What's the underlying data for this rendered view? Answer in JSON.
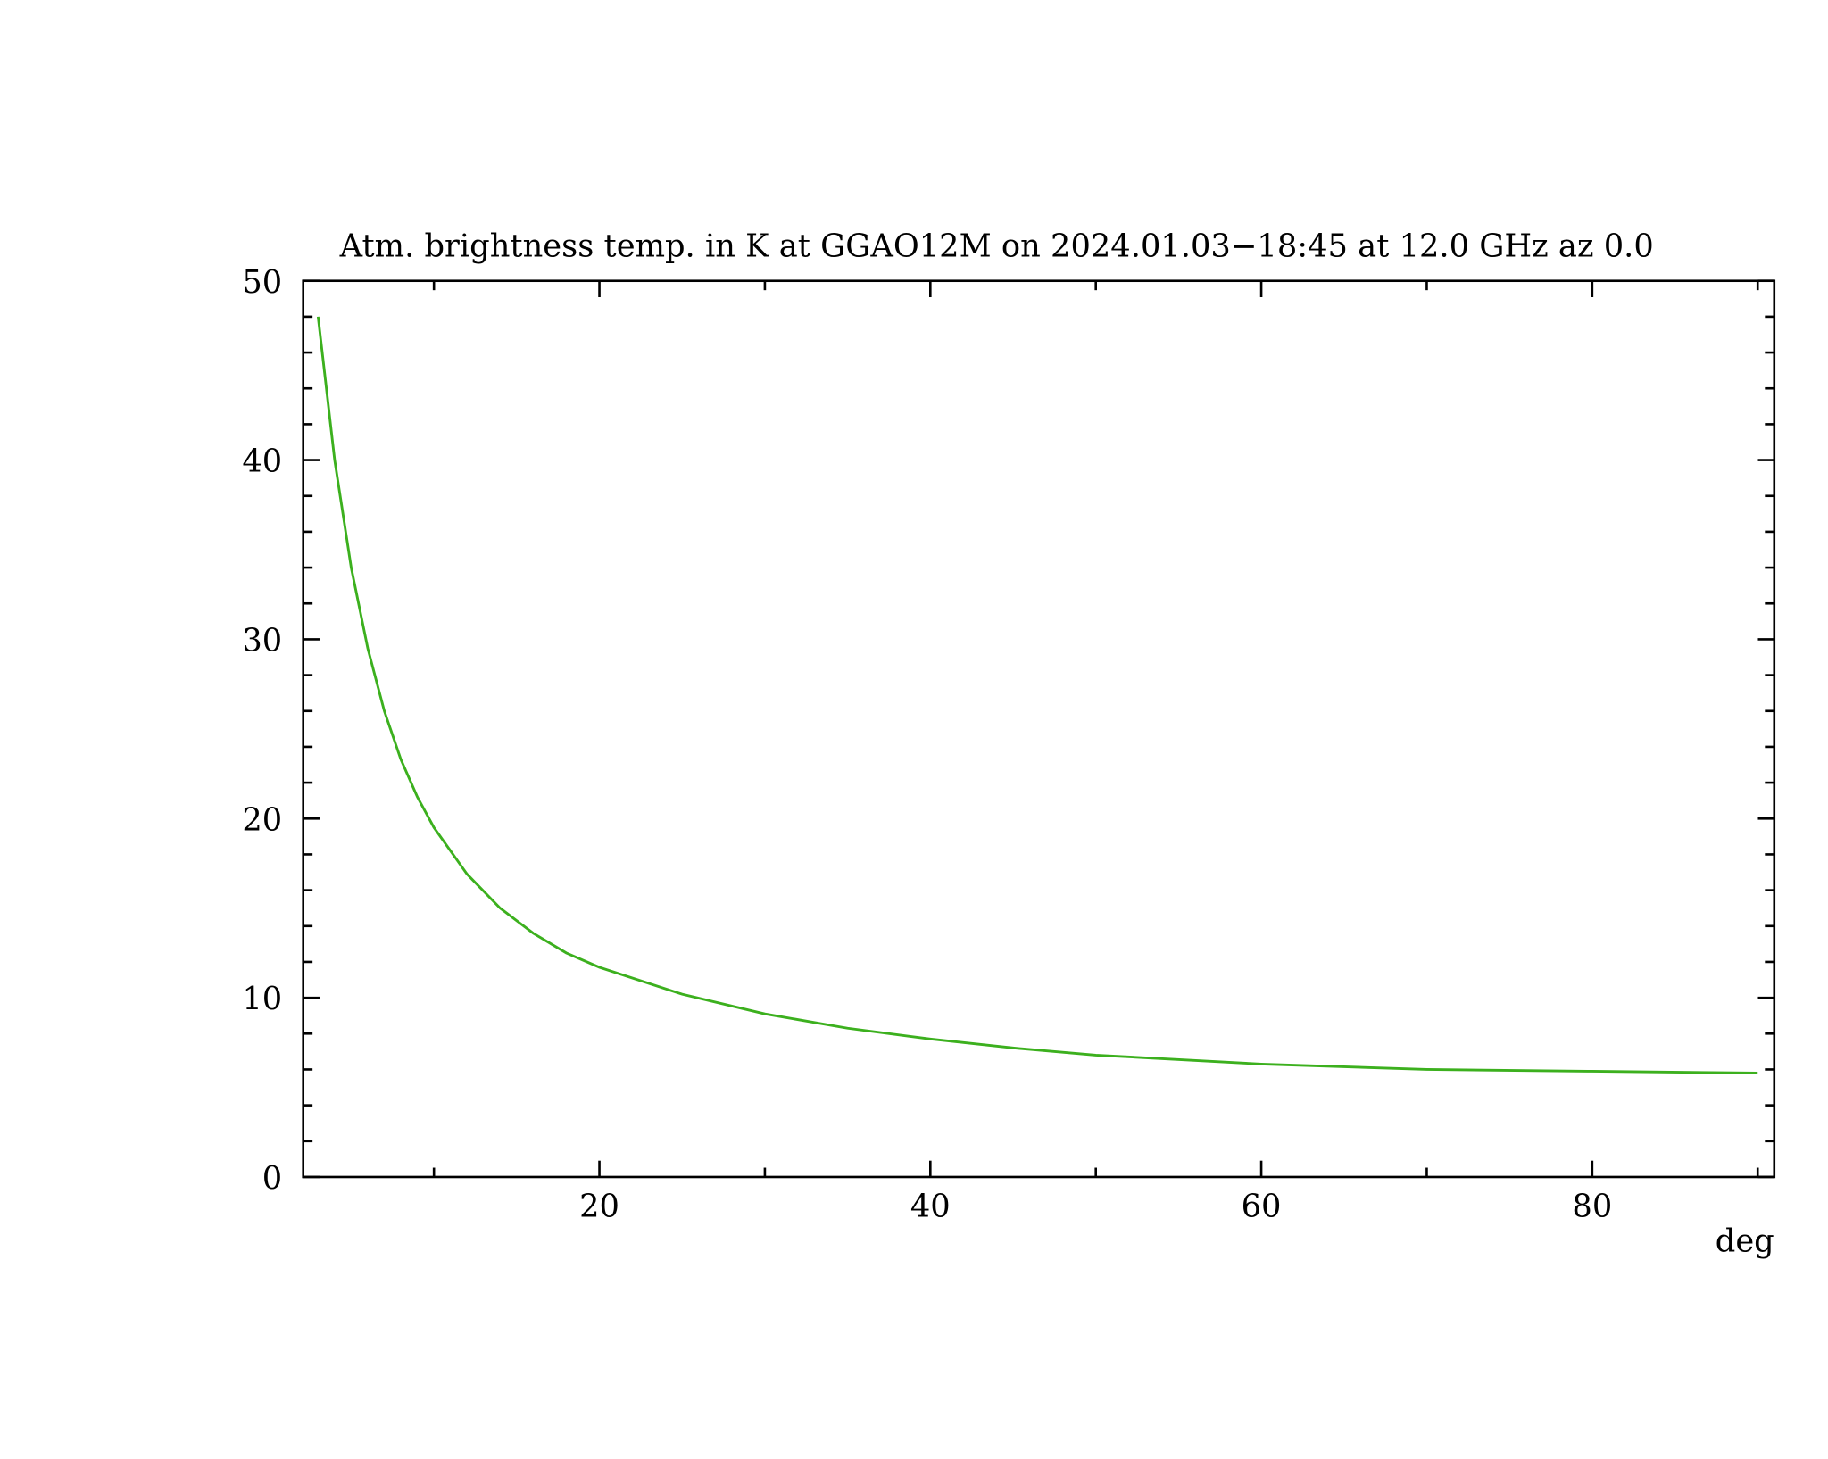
{
  "chart_data": {
    "type": "line",
    "title": "Atm. brightness temp. in K at GGAO12M  on 2024.01.03−18:45 at  12.0 GHz az    0.0",
    "x_label": "deg",
    "x": [
      3,
      4,
      5,
      6,
      7,
      8,
      9,
      10,
      12,
      14,
      16,
      18,
      20,
      25,
      30,
      35,
      40,
      45,
      50,
      60,
      70,
      80,
      90
    ],
    "series": [
      {
        "color": "#3cb01e",
        "values": [
          48,
          40,
          34,
          29.5,
          26,
          23.3,
          21.2,
          19.5,
          16.9,
          15.0,
          13.6,
          12.5,
          11.7,
          10.2,
          9.1,
          8.3,
          7.7,
          7.2,
          6.8,
          6.3,
          6.0,
          5.9,
          5.8
        ]
      }
    ],
    "xlim": [
      2.1,
      91
    ],
    "xticks": [
      20,
      40,
      60,
      80
    ],
    "ylim": [
      0,
      50
    ],
    "yticks": [
      0,
      10,
      20,
      30,
      40,
      50
    ]
  }
}
